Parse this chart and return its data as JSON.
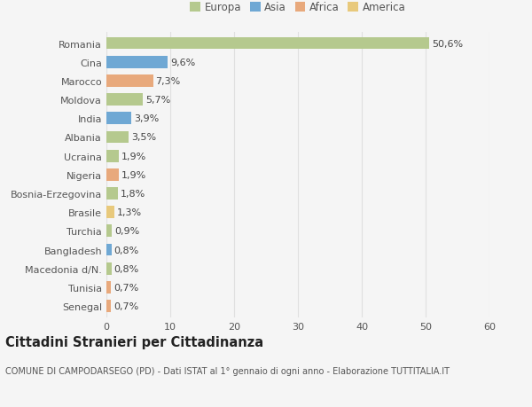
{
  "categories": [
    "Romania",
    "Cina",
    "Marocco",
    "Moldova",
    "India",
    "Albania",
    "Ucraina",
    "Nigeria",
    "Bosnia-Erzegovina",
    "Brasile",
    "Turchia",
    "Bangladesh",
    "Macedonia d/N.",
    "Tunisia",
    "Senegal"
  ],
  "values": [
    50.6,
    9.6,
    7.3,
    5.7,
    3.9,
    3.5,
    1.9,
    1.9,
    1.8,
    1.3,
    0.9,
    0.8,
    0.8,
    0.7,
    0.7
  ],
  "labels": [
    "50,6%",
    "9,6%",
    "7,3%",
    "5,7%",
    "3,9%",
    "3,5%",
    "1,9%",
    "1,9%",
    "1,8%",
    "1,3%",
    "0,9%",
    "0,8%",
    "0,8%",
    "0,7%",
    "0,7%"
  ],
  "colors": [
    "#b5c98e",
    "#6fa8d4",
    "#e8a97c",
    "#b5c98e",
    "#6fa8d4",
    "#b5c98e",
    "#b5c98e",
    "#e8a97c",
    "#b5c98e",
    "#e8c97c",
    "#b5c98e",
    "#6fa8d4",
    "#b5c98e",
    "#e8a97c",
    "#e8a97c"
  ],
  "legend": {
    "Europa": "#b5c98e",
    "Asia": "#6fa8d4",
    "Africa": "#e8a97c",
    "America": "#e8c97c"
  },
  "title": "Cittadini Stranieri per Cittadinanza",
  "subtitle": "COMUNE DI CAMPODARSEGO (PD) - Dati ISTAT al 1° gennaio di ogni anno - Elaborazione TUTTITALIA.IT",
  "xlim": [
    0,
    60
  ],
  "xticks": [
    0,
    10,
    20,
    30,
    40,
    50,
    60
  ],
  "background_color": "#f5f5f5",
  "grid_color": "#e0e0e0",
  "bar_label_fontsize": 8,
  "tick_fontsize": 8,
  "title_fontsize": 10.5,
  "subtitle_fontsize": 7,
  "legend_fontsize": 8.5
}
